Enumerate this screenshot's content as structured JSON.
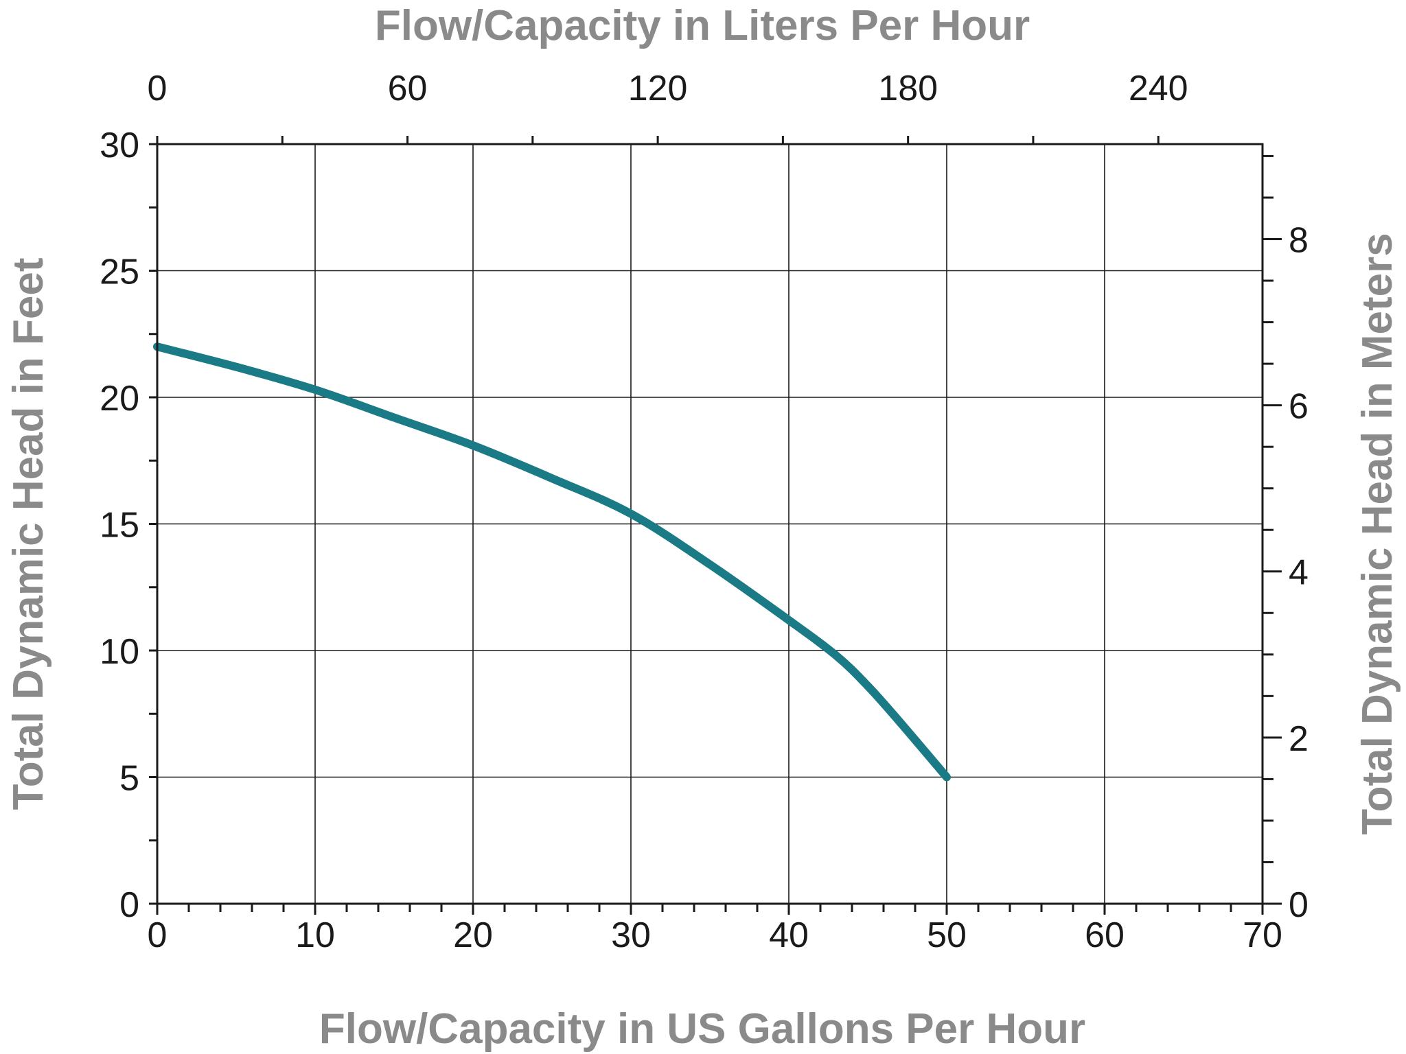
{
  "chart_data": {
    "type": "line",
    "title": "",
    "xlabel": "Flow/Capacity in US Gallons Per Hour",
    "ylabel": "Total Dynamic Head in Feet",
    "x2label": "Flow/Capacity in Liters Per Hour",
    "y2label": "Total Dynamic Head in Meters",
    "xlim": [
      0,
      70
    ],
    "ylim": [
      0,
      30
    ],
    "x2lim": [
      0,
      264.98
    ],
    "y2lim": [
      0,
      9.144
    ],
    "x_ticks": [
      0,
      10,
      20,
      30,
      40,
      50,
      60,
      70
    ],
    "x_tick_labels": [
      "0",
      "10",
      "20",
      "30",
      "40",
      "50",
      "60",
      "70"
    ],
    "y_ticks": [
      0,
      5,
      10,
      15,
      20,
      25,
      30
    ],
    "y_tick_labels": [
      "0",
      "5",
      "10",
      "15",
      "20",
      "25",
      "30"
    ],
    "x2_ticks": [
      0,
      60,
      120,
      180,
      240
    ],
    "x2_tick_labels": [
      "0",
      "60",
      "120",
      "180",
      "240"
    ],
    "y2_ticks": [
      0,
      2,
      4,
      6,
      8
    ],
    "y2_tick_labels": [
      "0",
      "2",
      "4",
      "6",
      "8"
    ],
    "grid": true,
    "line_color": "#1a7a85",
    "series": [
      {
        "x": [
          0,
          5,
          10,
          15,
          20,
          25,
          30,
          35,
          40,
          43,
          45,
          47,
          50
        ],
        "y": [
          22.0,
          21.2,
          20.3,
          19.2,
          18.1,
          16.8,
          15.4,
          13.4,
          11.2,
          9.8,
          8.6,
          7.2,
          5.0
        ]
      }
    ]
  }
}
